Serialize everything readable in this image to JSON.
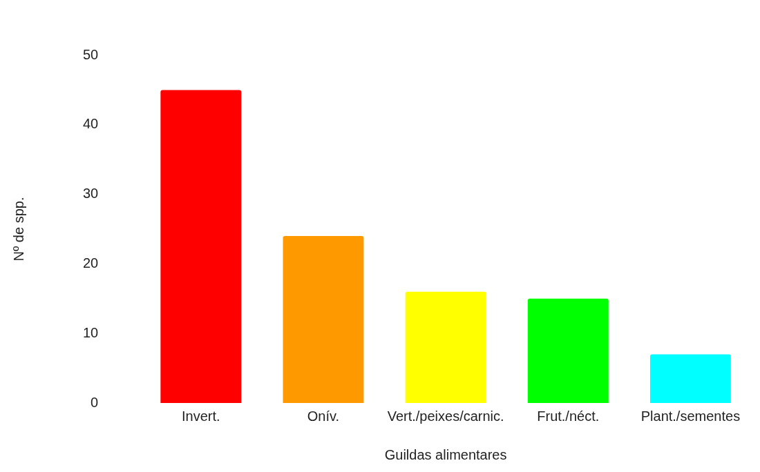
{
  "chart_data": {
    "type": "bar",
    "xlabel": "Guildas alimentares",
    "ylabel": "Nº de spp.",
    "categories": [
      "Invert.",
      "Onív.",
      "Vert./peixes/carnic.",
      "Frut./néct.",
      "Plant./sementes"
    ],
    "values": [
      45,
      24,
      16,
      15,
      7
    ],
    "colors": [
      "#ff0000",
      "#ff9900",
      "#ffff00",
      "#00ff00",
      "#00ffff"
    ],
    "ylim": [
      0,
      50
    ],
    "yticks": [
      0,
      10,
      20,
      30,
      40,
      50
    ],
    "grid": false,
    "legend": false
  }
}
